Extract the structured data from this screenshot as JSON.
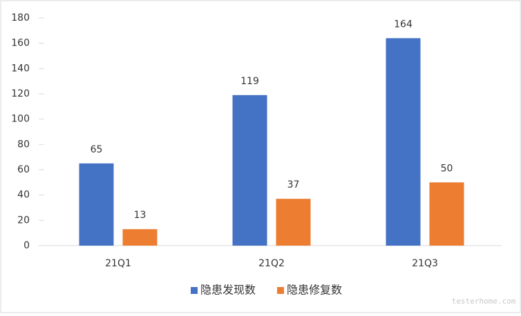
{
  "chart_data": {
    "type": "bar",
    "categories": [
      "21Q1",
      "21Q2",
      "21Q3"
    ],
    "series": [
      {
        "name": "隐患发现数",
        "color": "#4472c4",
        "values": [
          65,
          119,
          164
        ]
      },
      {
        "name": "隐患修复数",
        "color": "#ed7d31",
        "values": [
          13,
          37,
          50
        ]
      }
    ],
    "ylim": [
      0,
      180
    ],
    "yticks": [
      0,
      20,
      40,
      60,
      80,
      100,
      120,
      140,
      160,
      180
    ],
    "grid": false,
    "legend": "bottom",
    "data_labels": true,
    "watermark": "testerhome.com"
  }
}
